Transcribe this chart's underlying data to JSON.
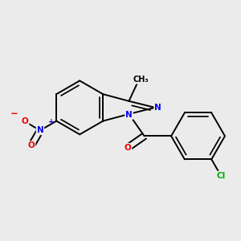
{
  "background_color": "#ebebeb",
  "bond_color": "#000000",
  "bond_lw": 1.4,
  "atom_colors": {
    "N": "#0000ee",
    "O": "#ee0000",
    "Cl": "#00aa00",
    "C": "#000000"
  },
  "font_size": 7.5,
  "fig_size": [
    3.0,
    3.0
  ],
  "dpi": 100,
  "xlim": [
    -0.1,
    1.1
  ],
  "ylim": [
    -0.05,
    1.05
  ]
}
